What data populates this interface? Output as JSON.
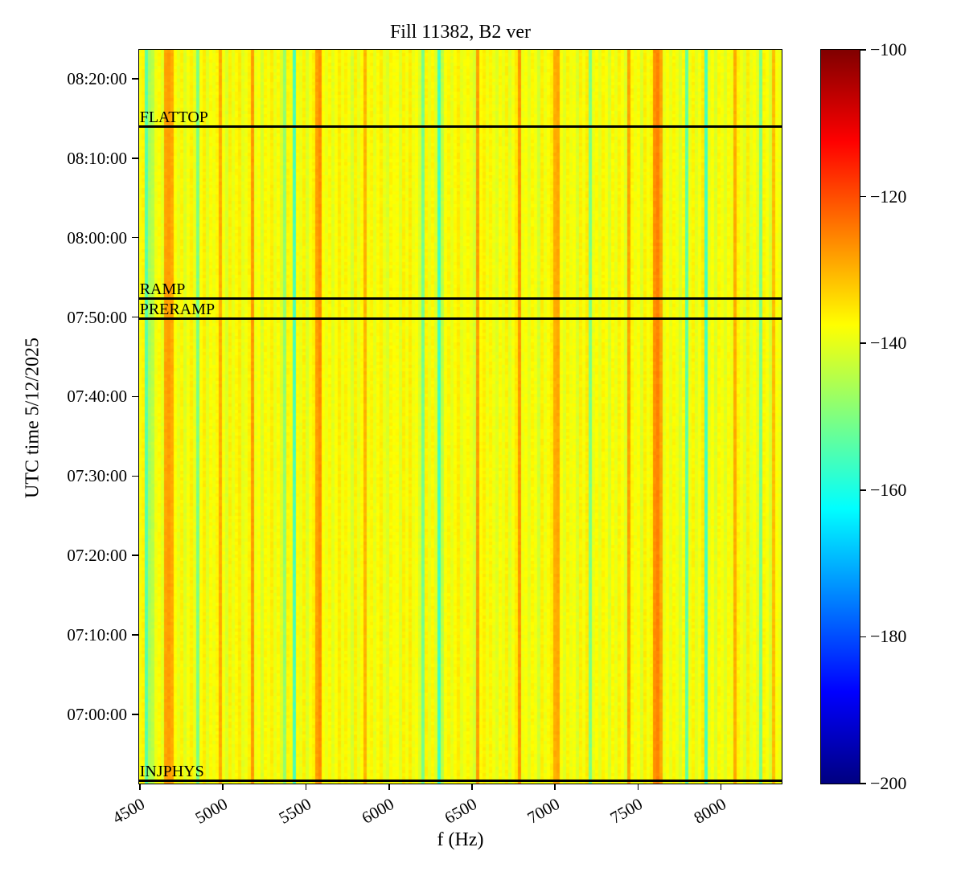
{
  "title": "Fill 11382, B2 ver",
  "chart_data": {
    "type": "heatmap",
    "title": "Fill 11382, B2 ver",
    "xlabel": "f (Hz)",
    "ylabel": "UTC time 5/12/2025",
    "x_range_hz": [
      4495,
      8365
    ],
    "x_ticks_hz": [
      4500,
      5000,
      5500,
      6000,
      6500,
      7000,
      7500,
      8000
    ],
    "time_start": "06:51:18",
    "time_end": "08:23:38",
    "y_ticks": [
      "08:20:00",
      "08:10:00",
      "08:00:00",
      "07:50:00",
      "07:40:00",
      "07:30:00",
      "07:20:00",
      "07:10:00",
      "07:00:00"
    ],
    "grid": false,
    "colorbar": {
      "colormap": "jet",
      "min": -200,
      "max": -100,
      "tick_values": [
        -100,
        -120,
        -140,
        -160,
        -180,
        -200
      ],
      "tick_labels": [
        "−100",
        "−120",
        "−140",
        "−160",
        "−180",
        "−200"
      ]
    },
    "annotations": [
      {
        "label": "FLATTOP",
        "time": "08:13:55"
      },
      {
        "label": "RAMP",
        "time": "07:52:17"
      },
      {
        "label": "PRERAMP",
        "time": "07:49:45"
      },
      {
        "label": "INJPHYS",
        "time": "06:51:30"
      }
    ],
    "n_freq_bins": 200,
    "power_db": [
      -138.2,
      -136.5,
      -154.0,
      -146.0,
      -144.5,
      -139.0,
      -137.2,
      -140.1,
      -128.5,
      -127.8,
      -129.0,
      -137.5,
      -139.8,
      -136.4,
      -141.0,
      -138.3,
      -136.0,
      -139.5,
      -150.2,
      -137.8,
      -135.8,
      -140.6,
      -137.3,
      -139.0,
      -136.7,
      -129.2,
      -138.4,
      -141.3,
      -136.1,
      -139.7,
      -137.0,
      -135.6,
      -140.2,
      -138.8,
      -136.3,
      -127.4,
      -139.3,
      -137.6,
      -141.5,
      -136.9,
      -138.5,
      -135.7,
      -139.9,
      -137.1,
      -140.8,
      -148.3,
      -136.6,
      -138.9,
      -155.5,
      -137.4,
      -139.6,
      -136.2,
      -141.1,
      -138.0,
      -135.9,
      -128.2,
      -126.3,
      -137.7,
      -139.4,
      -136.8,
      -140.4,
      -137.9,
      -135.5,
      -139.1,
      -136.4,
      -138.6,
      -141.7,
      -136.0,
      -139.8,
      -137.3,
      -130.1,
      -138.7,
      -136.5,
      -140.0,
      -137.2,
      -135.8,
      -139.5,
      -141.2,
      -136.7,
      -138.3,
      -137.5,
      -140.9,
      -136.1,
      -138.8,
      -135.6,
      -139.2,
      -137.8,
      -141.4,
      -151.0,
      -136.3,
      -139.7,
      -137.0,
      -140.5,
      -156.2,
      -144.0,
      -138.1,
      -136.6,
      -139.9,
      -137.4,
      -135.7,
      -140.2,
      -138.5,
      -136.9,
      -139.3,
      -141.6,
      -128.0,
      -137.6,
      -135.9,
      -139.0,
      -136.4,
      -138.9,
      -140.7,
      -137.1,
      -139.6,
      -136.2,
      -141.0,
      -138.4,
      -135.5,
      -127.2,
      -139.2,
      -137.7,
      -140.3,
      -136.8,
      -138.6,
      -141.8,
      -136.0,
      -139.4,
      -137.3,
      -135.8,
      -129.5,
      -128.8,
      -138.2,
      -140.6,
      -136.5,
      -139.0,
      -137.9,
      -141.3,
      -136.1,
      -138.7,
      -135.6,
      -150.4,
      -139.5,
      -137.2,
      -140.1,
      -136.6,
      -138.3,
      -141.5,
      -137.0,
      -139.8,
      -136.3,
      -138.0,
      -140.8,
      -128.3,
      -136.7,
      -139.1,
      -137.5,
      -141.1,
      -135.9,
      -138.5,
      -136.2,
      -126.5,
      -125.2,
      -128.6,
      -139.7,
      -137.4,
      -140.0,
      -136.8,
      -138.9,
      -141.6,
      -137.1,
      -153.3,
      -139.3,
      -136.5,
      -140.4,
      -138.1,
      -135.7,
      -155.8,
      -139.6,
      -137.8,
      -141.2,
      -136.9,
      -138.4,
      -140.7,
      -137.2,
      -139.0,
      -129.4,
      -136.4,
      -138.8,
      -141.0,
      -135.8,
      -139.5,
      -137.6,
      -140.2,
      -150.6,
      -136.6,
      -138.2,
      -141.4,
      -131.0,
      -137.9,
      -139.1
    ]
  }
}
